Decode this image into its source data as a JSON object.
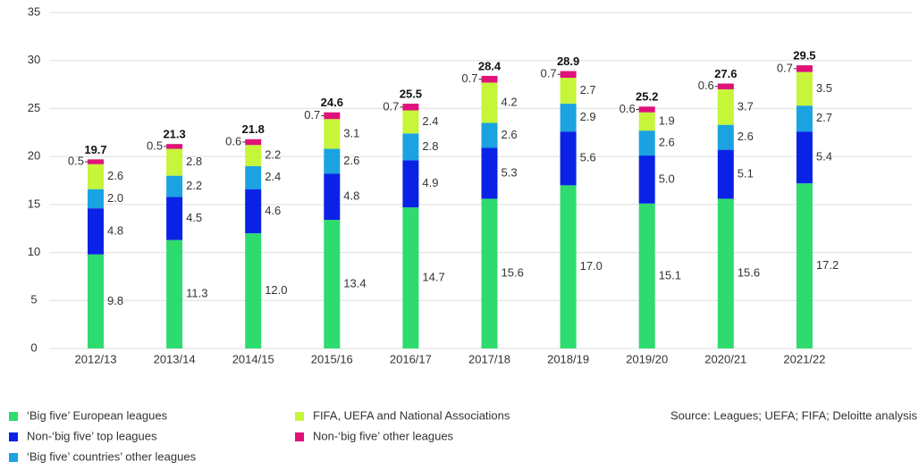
{
  "chart_data": {
    "type": "stacked_bar",
    "categories": [
      "2012/13",
      "2013/14",
      "2014/15",
      "2015/16",
      "2016/17",
      "2017/18",
      "2018/19",
      "2019/20",
      "2020/21",
      "2021/22"
    ],
    "series": [
      {
        "name": "‘Big five’ European leagues",
        "color": "#2edb6e",
        "values": [
          9.8,
          11.3,
          12.0,
          13.4,
          14.7,
          15.6,
          17.0,
          15.1,
          15.6,
          17.2
        ],
        "value_labels": [
          "9.8",
          "11.3",
          "12.0",
          "13.4",
          "14.7",
          "15.6",
          "17.0",
          "15.1",
          "15.6",
          "17.2"
        ]
      },
      {
        "name": "Non-‘big five’ top leagues",
        "color": "#0a22e6",
        "values": [
          4.8,
          4.5,
          4.6,
          4.8,
          4.9,
          5.3,
          5.6,
          5.0,
          5.1,
          5.4
        ],
        "value_labels": [
          "4.8",
          "4.5",
          "4.6",
          "4.8",
          "4.9",
          "5.3",
          "5.6",
          "5.0",
          "5.1",
          "5.4"
        ]
      },
      {
        "name": "‘Big five’ countries’ other leagues",
        "color": "#1aa3e0",
        "values": [
          2.0,
          2.2,
          2.4,
          2.6,
          2.8,
          2.6,
          2.9,
          2.6,
          2.6,
          2.7
        ],
        "value_labels": [
          "2.0",
          "2.2",
          "2.4",
          "2.6",
          "2.8",
          "2.6",
          "2.9",
          "2.6",
          "2.6",
          "2.7"
        ]
      },
      {
        "name": "FIFA, UEFA and National Associations",
        "color": "#c6f53a",
        "values": [
          2.6,
          2.8,
          2.2,
          3.1,
          2.4,
          4.2,
          2.7,
          1.9,
          3.7,
          3.5
        ],
        "value_labels": [
          "2.6",
          "2.8",
          "2.2",
          "3.1",
          "2.4",
          "4.2",
          "2.7",
          "1.9",
          "3.7",
          "3.5"
        ]
      },
      {
        "name": "Non-‘big five’ other leagues",
        "color": "#e0127a",
        "values": [
          0.5,
          0.5,
          0.6,
          0.7,
          0.7,
          0.7,
          0.7,
          0.6,
          0.6,
          0.7
        ],
        "value_labels": [
          "0.5",
          "0.5",
          "0.6",
          "0.7",
          "0.7",
          "0.7",
          "0.7",
          "0.6",
          "0.6",
          "0.7"
        ]
      }
    ],
    "totals": [
      19.7,
      21.3,
      21.8,
      24.6,
      25.5,
      28.4,
      28.9,
      25.2,
      27.6,
      29.5
    ],
    "ylim": [
      0,
      35
    ],
    "yticks": [
      0,
      5,
      10,
      15,
      20,
      25,
      30,
      35
    ],
    "grid": true,
    "source": "Source: Leagues; UEFA; FIFA; Deloitte analysis"
  }
}
